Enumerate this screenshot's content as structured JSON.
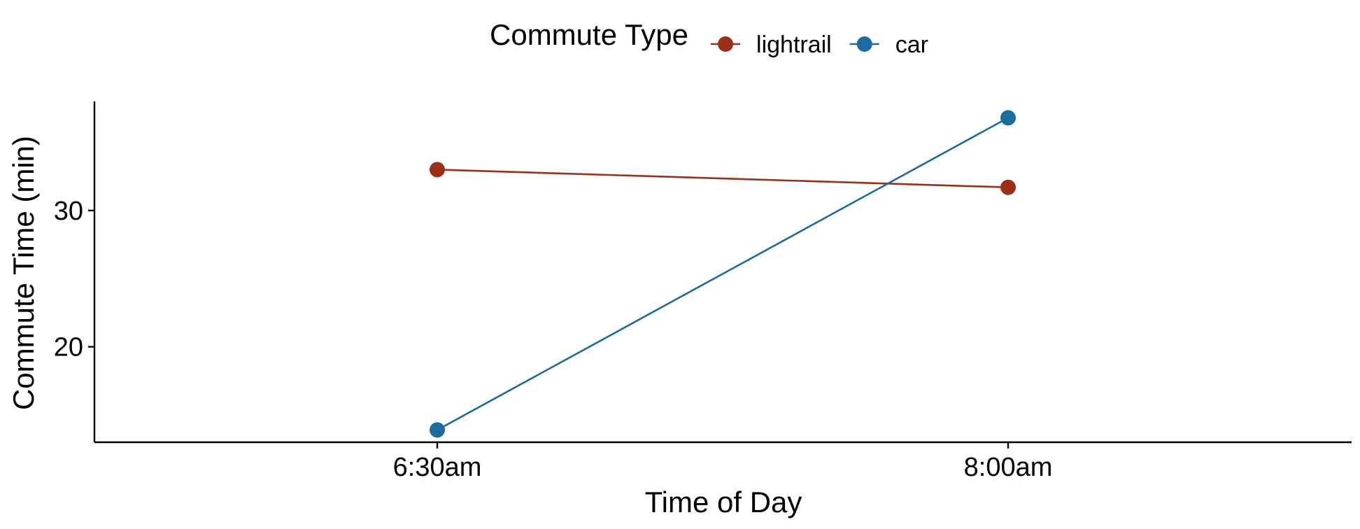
{
  "chart_data": {
    "type": "line",
    "title": "",
    "xlabel": "Time of Day",
    "ylabel": "Commute Time (min)",
    "categories": [
      "6:30am",
      "8:00am"
    ],
    "ylim": [
      13,
      38
    ],
    "yticks": [
      20,
      30
    ],
    "grid": false,
    "legend": {
      "title": "Commute Type",
      "position": "top"
    },
    "series": [
      {
        "name": "lightrail",
        "color": "#9A3015",
        "values": [
          33.0,
          31.7
        ]
      },
      {
        "name": "car",
        "color": "#1B6B9E",
        "values": [
          13.9,
          36.8
        ]
      }
    ]
  }
}
